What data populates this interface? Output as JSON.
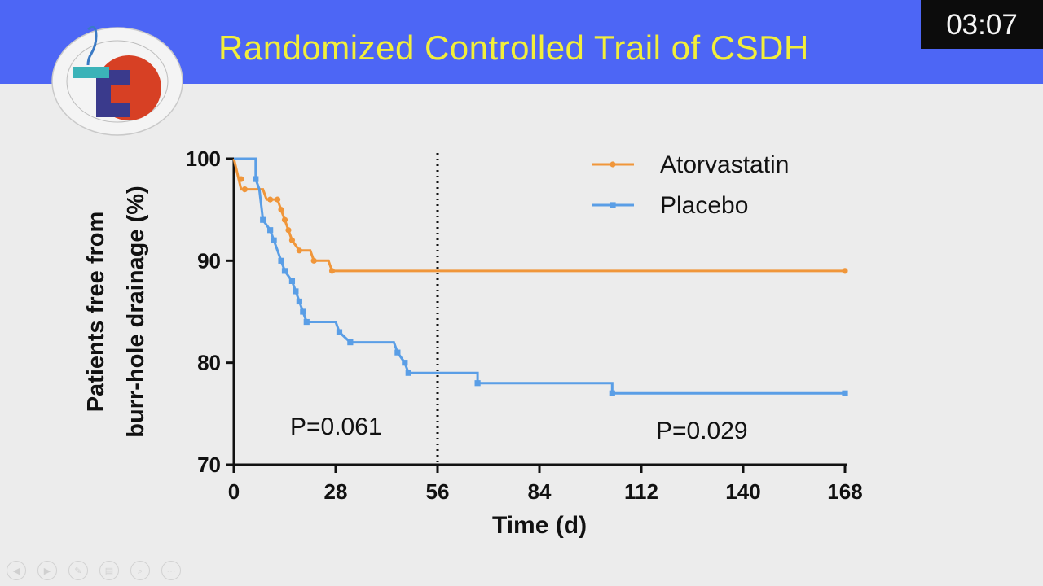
{
  "slide": {
    "title": "Randomized Controlled Trail of CSDH",
    "timer": "03:07",
    "logo_icon": "hospital-seal-logo",
    "colors": {
      "header": "#4d66f5",
      "title": "#f2ee3a",
      "atorvastatin": "#f0963a",
      "placebo": "#5a9ee6"
    }
  },
  "chart_data": {
    "type": "line",
    "title": "",
    "xlabel": "Time (d)",
    "ylabel_line1": "Patients free from",
    "ylabel_line2": "burr-hole drainage (%)",
    "xlim": [
      0,
      168
    ],
    "ylim": [
      70,
      100
    ],
    "xticks": [
      0,
      28,
      56,
      84,
      112,
      140,
      168
    ],
    "yticks": [
      70,
      80,
      90,
      100
    ],
    "grid": false,
    "legend_position": "top-right",
    "reference_line_x": 56,
    "annotations": [
      {
        "text": "P=0.061",
        "position": "left of reference line"
      },
      {
        "text": "P=0.029",
        "position": "bottom-right"
      }
    ],
    "series": [
      {
        "name": "Atorvastatin",
        "color": "#f0963a",
        "steps": [
          [
            0,
            100
          ],
          [
            2,
            97
          ],
          [
            8,
            97
          ],
          [
            9,
            96
          ],
          [
            12,
            96
          ],
          [
            13,
            95
          ],
          [
            14,
            94
          ],
          [
            15,
            93
          ],
          [
            16,
            92
          ],
          [
            18,
            91
          ],
          [
            21,
            91
          ],
          [
            22,
            90
          ],
          [
            26,
            90
          ],
          [
            27,
            89
          ],
          [
            168,
            89
          ]
        ],
        "markers": [
          [
            2,
            98
          ],
          [
            3,
            97
          ],
          [
            10,
            96
          ],
          [
            12,
            96
          ],
          [
            13,
            95
          ],
          [
            14,
            94
          ],
          [
            15,
            93
          ],
          [
            16,
            92
          ],
          [
            18,
            91
          ],
          [
            22,
            90
          ],
          [
            27,
            89
          ],
          [
            168,
            89
          ]
        ]
      },
      {
        "name": "Placebo",
        "color": "#5a9ee6",
        "steps": [
          [
            0,
            100
          ],
          [
            6,
            100
          ],
          [
            6,
            98
          ],
          [
            7,
            97
          ],
          [
            8,
            94
          ],
          [
            10,
            93
          ],
          [
            11,
            92
          ],
          [
            13,
            90
          ],
          [
            14,
            89
          ],
          [
            16,
            88
          ],
          [
            17,
            87
          ],
          [
            18,
            86
          ],
          [
            19,
            85
          ],
          [
            20,
            84
          ],
          [
            28,
            84
          ],
          [
            29,
            83
          ],
          [
            32,
            82
          ],
          [
            44,
            82
          ],
          [
            45,
            81
          ],
          [
            47,
            80
          ],
          [
            48,
            79
          ],
          [
            67,
            79
          ],
          [
            67,
            78
          ],
          [
            104,
            78
          ],
          [
            104,
            77
          ],
          [
            168,
            77
          ]
        ],
        "markers": [
          [
            6,
            98
          ],
          [
            8,
            94
          ],
          [
            10,
            93
          ],
          [
            11,
            92
          ],
          [
            13,
            90
          ],
          [
            14,
            89
          ],
          [
            16,
            88
          ],
          [
            17,
            87
          ],
          [
            18,
            86
          ],
          [
            19,
            85
          ],
          [
            20,
            84
          ],
          [
            29,
            83
          ],
          [
            32,
            82
          ],
          [
            45,
            81
          ],
          [
            47,
            80
          ],
          [
            48,
            79
          ],
          [
            67,
            78
          ],
          [
            104,
            77
          ],
          [
            168,
            77
          ]
        ]
      }
    ]
  },
  "player": {
    "controls": [
      {
        "icon": "previous-icon",
        "glyph": "◀"
      },
      {
        "icon": "next-icon",
        "glyph": "▶"
      },
      {
        "icon": "pen-icon",
        "glyph": "✎"
      },
      {
        "icon": "slides-icon",
        "glyph": "▤"
      },
      {
        "icon": "zoom-icon",
        "glyph": "⌕"
      },
      {
        "icon": "more-icon",
        "glyph": "⋯"
      }
    ]
  }
}
